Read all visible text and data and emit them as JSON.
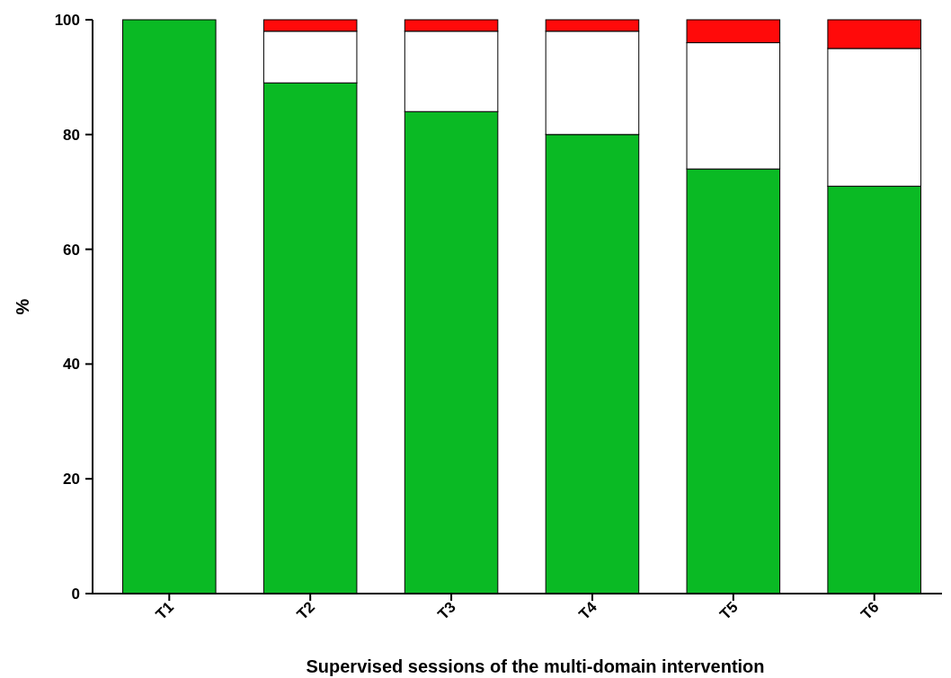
{
  "chart_data": {
    "type": "bar",
    "stacked": true,
    "xlabel": "Supervised sessions of the multi-domain intervention",
    "ylabel": "%",
    "categories": [
      "T1",
      "T2",
      "T3",
      "T4",
      "T5",
      "T6"
    ],
    "series": [
      {
        "color": "#0aba24",
        "values": [
          100,
          89,
          84,
          80,
          74,
          71
        ]
      },
      {
        "color": "#ffffff",
        "values": [
          0,
          9,
          14,
          18,
          22,
          24
        ]
      },
      {
        "color": "#ff0a0a",
        "values": [
          0,
          2,
          2,
          2,
          4,
          5
        ]
      }
    ],
    "ylim": [
      0,
      100
    ],
    "yticks": [
      0,
      20,
      40,
      60,
      80,
      100
    ]
  }
}
